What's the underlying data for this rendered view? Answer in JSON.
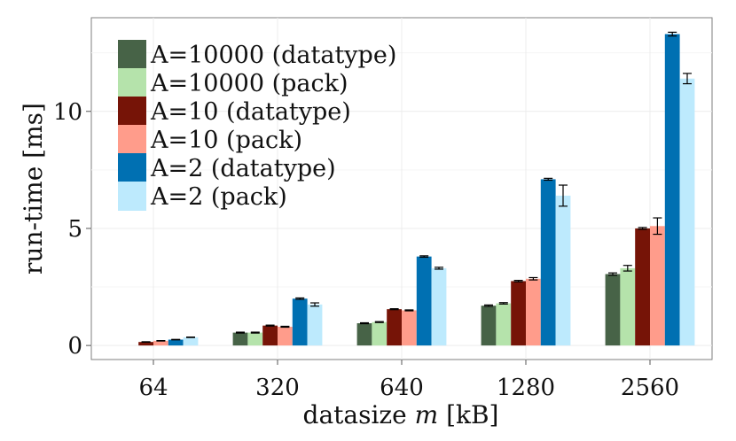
{
  "chart_data": {
    "type": "bar",
    "title": "",
    "xlabel_prefix": "datasize ",
    "xlabel_var": "m",
    "xlabel_suffix": " [kB]",
    "ylabel": "run-time [ms]",
    "categories": [
      "64",
      "320",
      "640",
      "1280",
      "2560"
    ],
    "ylim": [
      -0.6,
      14.0
    ],
    "yticks": [
      0,
      5,
      10
    ],
    "grid": true,
    "legend_position": "top-left",
    "series": [
      {
        "name": "A=10000 (datatype)",
        "color": "#476347",
        "values": [
          null,
          0.55,
          0.95,
          1.7,
          3.05
        ],
        "errors": [
          null,
          0.02,
          0.02,
          0.03,
          0.05
        ]
      },
      {
        "name": "A=10000 (pack)",
        "color": "#b5e3ab",
        "values": [
          null,
          0.55,
          1.0,
          1.8,
          3.3
        ],
        "errors": [
          null,
          0.02,
          0.02,
          0.03,
          0.12
        ]
      },
      {
        "name": "A=10 (datatype)",
        "color": "#761407",
        "values": [
          0.15,
          0.85,
          1.55,
          2.75,
          5.0
        ],
        "errors": [
          0.01,
          0.02,
          0.02,
          0.03,
          0.04
        ]
      },
      {
        "name": "A=10 (pack)",
        "color": "#ff9c8b",
        "values": [
          0.2,
          0.8,
          1.5,
          2.85,
          5.1
        ],
        "errors": [
          0.01,
          0.02,
          0.02,
          0.05,
          0.35
        ]
      },
      {
        "name": "A=2 (datatype)",
        "color": "#0070b2",
        "values": [
          0.25,
          2.0,
          3.8,
          7.1,
          13.3
        ],
        "errors": [
          0.01,
          0.03,
          0.03,
          0.04,
          0.08
        ]
      },
      {
        "name": "A=2 (pack)",
        "color": "#bdeafd",
        "values": [
          0.35,
          1.75,
          3.3,
          6.4,
          11.4
        ],
        "errors": [
          0.01,
          0.07,
          0.04,
          0.45,
          0.22
        ]
      }
    ]
  }
}
